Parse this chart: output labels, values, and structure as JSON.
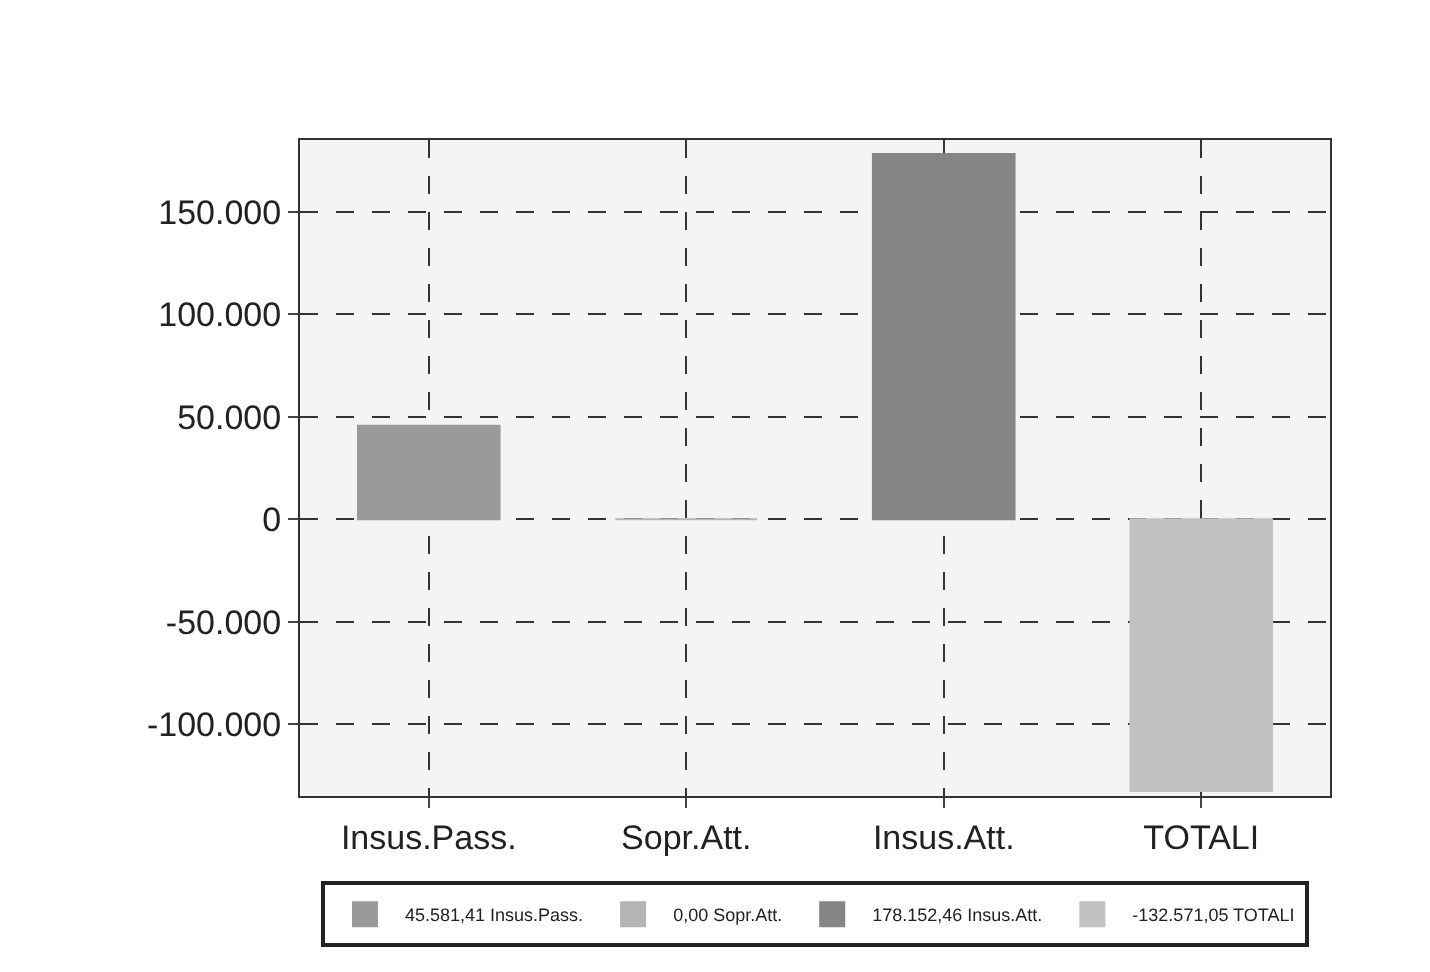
{
  "chart_data": {
    "type": "bar",
    "categories": [
      "Insus.Pass.",
      "Sopr.Att.",
      "Insus.Att.",
      "TOTALI"
    ],
    "series": [
      {
        "name": "45.581,41 Insus.Pass.",
        "color": "#9a9a9a",
        "values": [
          45581.41,
          null,
          null,
          null
        ]
      },
      {
        "name": "0,00 Sopr.Att.",
        "color": "#b4b4b4",
        "values": [
          null,
          0,
          null,
          null
        ]
      },
      {
        "name": "178.152,46 Insus.Att.",
        "color": "#858585",
        "values": [
          null,
          null,
          178152.46,
          null
        ]
      },
      {
        "name": "-132.571,05 TOTALI",
        "color": "#c2c2c2",
        "values": [
          null,
          null,
          null,
          -132571.05
        ]
      }
    ],
    "ylim": [
      -135000,
      185000
    ],
    "yticks": [
      {
        "value": -100000,
        "label": "-100.000"
      },
      {
        "value": -50000,
        "label": "-50.000"
      },
      {
        "value": 0,
        "label": "0"
      },
      {
        "value": 50000,
        "label": "50.000"
      },
      {
        "value": 100000,
        "label": "100.000"
      },
      {
        "value": 150000,
        "label": "150.000"
      }
    ],
    "grid": true,
    "legend": "bottom"
  }
}
